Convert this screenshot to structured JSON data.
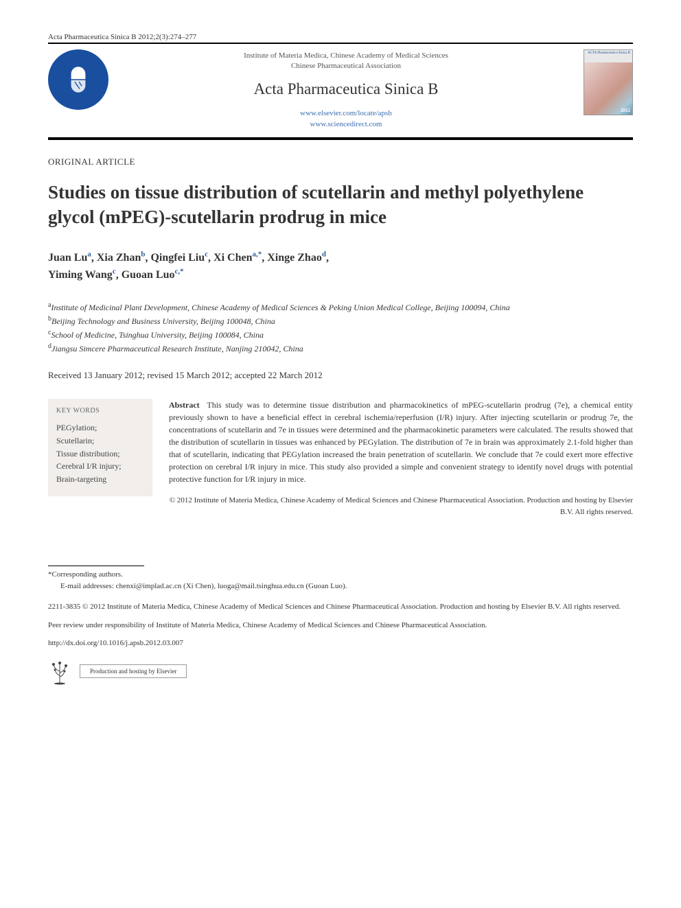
{
  "citation": "Acta Pharmaceutica Sinica B 2012;2(3):274–277",
  "header": {
    "institute_line1": "Institute of Materia Medica, Chinese Academy of Medical Sciences",
    "institute_line2": "Chinese Pharmaceutical Association",
    "journal": "Acta Pharmaceutica Sinica B",
    "link1": "www.elsevier.com/locate/apsb",
    "link2": "www.sciencedirect.com",
    "cover_label_top": "ACTA Pharmaceutica Sinica B",
    "cover_year": "2012"
  },
  "article_type": "ORIGINAL ARTICLE",
  "title": "Studies on tissue distribution of scutellarin and methyl polyethylene glycol (mPEG)-scutellarin prodrug in mice",
  "authors_list": [
    {
      "name": "Juan Lu",
      "aff": "a"
    },
    {
      "name": "Xia Zhan",
      "aff": "b"
    },
    {
      "name": "Qingfei Liu",
      "aff": "c"
    },
    {
      "name": "Xi Chen",
      "aff": "a,*"
    },
    {
      "name": "Xinge Zhao",
      "aff": "d"
    },
    {
      "name": "Yiming Wang",
      "aff": "c"
    },
    {
      "name": "Guoan Luo",
      "aff": "c,*"
    }
  ],
  "affiliations": [
    {
      "sup": "a",
      "text": "Institute of Medicinal Plant Development, Chinese Academy of Medical Sciences & Peking Union Medical College, Beijing 100094, China"
    },
    {
      "sup": "b",
      "text": "Beijing Technology and Business University, Beijing 100048, China"
    },
    {
      "sup": "c",
      "text": "School of Medicine, Tsinghua University, Beijing 100084, China"
    },
    {
      "sup": "d",
      "text": "Jiangsu Simcere Pharmaceutical Research Institute, Nanjing 210042, China"
    }
  ],
  "dates": "Received 13 January 2012; revised 15 March 2012; accepted 22 March 2012",
  "keywords_heading": "KEY WORDS",
  "keywords": [
    "PEGylation;",
    "Scutellarin;",
    "Tissue distribution;",
    "Cerebral I/R injury;",
    "Brain-targeting"
  ],
  "abstract_label": "Abstract",
  "abstract_body": "This study was to determine tissue distribution and pharmacokinetics of mPEG-scutellarin prodrug (7e), a chemical entity previously shown to have a beneficial effect in cerebral ischemia/reperfusion (I/R) injury. After injecting scutellarin or prodrug 7e, the concentrations of scutellarin and 7e in tissues were determined and the pharmacokinetic parameters were calculated. The results showed that the distribution of scutellarin in tissues was enhanced by PEGylation. The distribution of 7e in brain was approximately 2.1-fold higher than that of scutellarin, indicating that PEGylation increased the brain penetration of scutellarin. We conclude that 7e could exert more effective protection on cerebral I/R injury in mice. This study also provided a simple and convenient strategy to identify novel drugs with potential protective function for I/R injury in mice.",
  "abstract_copyright": "© 2012 Institute of Materia Medica, Chinese Academy of Medical Sciences and Chinese Pharmaceutical Association. Production and hosting by Elsevier B.V. All rights reserved.",
  "footnotes": {
    "corr": "*Corresponding authors.",
    "email_label": "E-mail addresses:",
    "emails": "chenxi@implad.ac.cn (Xi Chen), luoga@mail.tsinghua.edu.cn (Guoan Luo)."
  },
  "publisher_block": "2211-3835 © 2012 Institute of Materia Medica, Chinese Academy of Medical Sciences and Chinese Pharmaceutical Association. Production and hosting by Elsevier B.V. All rights reserved.",
  "peer_review": "Peer review under responsibility of Institute of Materia Medica, Chinese Academy of Medical Sciences and Chinese Pharmaceutical Association.",
  "doi": "http://dx.doi.org/10.1016/j.apsb.2012.03.007",
  "hosting": "Production and hosting by Elsevier",
  "colors": {
    "logo_bg": "#1a4fa0",
    "sup_color": "#2a5aa0",
    "keywords_bg": "#f1eeeb",
    "link_color": "#3a6db0"
  }
}
